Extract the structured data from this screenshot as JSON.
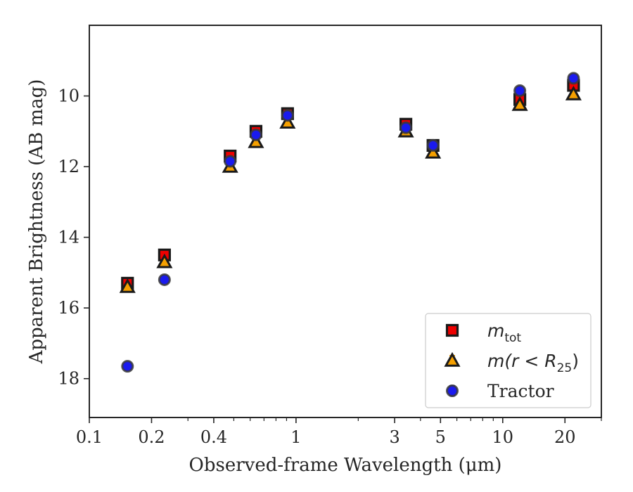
{
  "chart_data": {
    "type": "scatter",
    "xlabel": "Observed-frame Wavelength (μm)",
    "ylabel": "Apparent Brightness (AB mag)",
    "x_scale": "log",
    "xlim": [
      0.1,
      30
    ],
    "ylim": [
      19.1,
      8.0
    ],
    "y_inverted": true,
    "x_ticks": [
      {
        "value": 0.1,
        "label": "0.1"
      },
      {
        "value": 0.2,
        "label": "0.2"
      },
      {
        "value": 0.4,
        "label": "0.4"
      },
      {
        "value": 1,
        "label": "1"
      },
      {
        "value": 3,
        "label": "3"
      },
      {
        "value": 5,
        "label": "5"
      },
      {
        "value": 10,
        "label": "10"
      },
      {
        "value": 20,
        "label": "20"
      }
    ],
    "y_ticks": [
      10,
      12,
      14,
      16,
      18
    ],
    "grid": false,
    "legend_position": "lower-right",
    "series": [
      {
        "name": "m_tot",
        "legend_main": "m",
        "legend_sub": "tot",
        "legend_after": "",
        "marker": "square",
        "color": "#ee0000",
        "x": [
          0.153,
          0.231,
          0.48,
          0.64,
          0.91,
          3.4,
          4.6,
          12.1,
          22
        ],
        "y": [
          15.3,
          14.5,
          11.7,
          11.0,
          10.5,
          10.8,
          11.4,
          10.1,
          9.7
        ]
      },
      {
        "name": "m(r < R25)",
        "legend_main": "m(r < R",
        "legend_sub": "25",
        "legend_after": ")",
        "marker": "triangle",
        "color": "#f5a000",
        "x": [
          0.153,
          0.231,
          0.48,
          0.64,
          0.91,
          3.4,
          4.6,
          12.1,
          22
        ],
        "y": [
          15.4,
          14.7,
          12.0,
          11.3,
          10.75,
          11.0,
          11.6,
          10.25,
          9.95
        ]
      },
      {
        "name": "Tractor",
        "legend_main": "Tractor",
        "legend_sub": "",
        "legend_after": "",
        "marker": "circle",
        "color": "#1a1aee",
        "x": [
          0.153,
          0.231,
          0.48,
          0.64,
          0.91,
          3.4,
          4.6,
          12.1,
          22
        ],
        "y": [
          17.65,
          15.2,
          11.85,
          11.1,
          10.55,
          10.9,
          11.4,
          9.85,
          9.5
        ]
      }
    ]
  }
}
